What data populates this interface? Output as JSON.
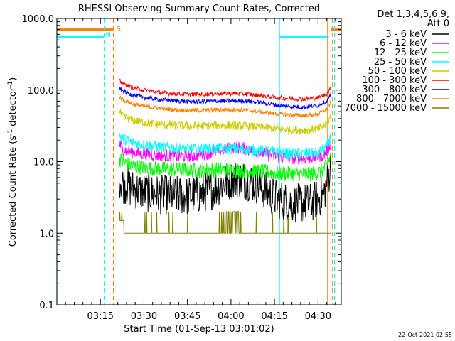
{
  "chart_data": {
    "type": "line",
    "title": "RHESSI Observing Summary Count Rates, Corrected",
    "xlabel": "Start Time (01-Sep-13 03:01:02)",
    "ylabel_main": "Corrected Count Rate (s",
    "ylabel_sup1": "-1",
    "ylabel_mid": " detector",
    "ylabel_sup2": "-1",
    "ylabel_end": ")",
    "y_scale": "log",
    "ylim": [
      0.1,
      1000
    ],
    "y_ticks": [
      {
        "value": 0.1,
        "label": "0.1"
      },
      {
        "value": 1,
        "label": "1.0"
      },
      {
        "value": 10,
        "label": "10.0"
      },
      {
        "value": 100,
        "label": "100.0"
      },
      {
        "value": 1000,
        "label": "1000.0"
      }
    ],
    "x_units": "minutes after 03:00",
    "xlim": [
      0,
      98
    ],
    "x_ticks": [
      {
        "value": 15,
        "label": "03:15"
      },
      {
        "value": 30,
        "label": "03:30"
      },
      {
        "value": 45,
        "label": "03:45"
      },
      {
        "value": 60,
        "label": "04:00"
      },
      {
        "value": 75,
        "label": "04:15"
      },
      {
        "value": 90,
        "label": "04:30"
      }
    ],
    "legend_header_1": "Det 1,3,4,5,6,9,",
    "legend_header_2": "Att 0",
    "legend_placement": "right",
    "series": [
      {
        "name": "3 - 6 keV",
        "color": "#000000",
        "start": 21.5,
        "end": 94.5,
        "x": [
          21.5,
          22.5,
          26,
          30,
          35,
          40,
          45,
          50,
          55,
          58,
          61,
          64,
          67,
          70,
          73,
          76,
          80,
          84,
          88,
          92,
          93.5,
          94.5
        ],
        "y": [
          6,
          5,
          4.2,
          3.8,
          3.5,
          3.4,
          3.3,
          3.6,
          4.3,
          5.2,
          5.7,
          5.7,
          5.2,
          4.5,
          3.6,
          3.0,
          2.7,
          2.6,
          2.7,
          3.5,
          6,
          9
        ]
      },
      {
        "name": "6 - 12 keV",
        "color": "#ff00ff",
        "start": 21.5,
        "end": 94.5,
        "x": [
          21.5,
          22.5,
          26,
          30,
          35,
          40,
          45,
          50,
          55,
          58,
          61,
          64,
          67,
          70,
          73,
          76,
          80,
          84,
          88,
          92,
          93.5,
          94.5
        ],
        "y": [
          18,
          15,
          13.5,
          12.8,
          12.3,
          12,
          11.8,
          12.6,
          14,
          15,
          15.8,
          15.4,
          14.6,
          13.5,
          12.6,
          11.8,
          11.3,
          11.1,
          11.4,
          12.5,
          15,
          19
        ]
      },
      {
        "name": "12 - 25 keV",
        "color": "#00ff00",
        "start": 21.5,
        "end": 94.5,
        "x": [
          21.5,
          22.5,
          26,
          30,
          35,
          40,
          45,
          50,
          55,
          60,
          65,
          70,
          75,
          80,
          85,
          90,
          93,
          94.5
        ],
        "y": [
          11,
          10,
          8.7,
          8.3,
          8.0,
          7.8,
          7.7,
          7.6,
          7.7,
          7.7,
          7.5,
          7.3,
          7.0,
          6.8,
          6.7,
          6.9,
          8.5,
          13
        ]
      },
      {
        "name": "25 - 50 keV",
        "color": "#00ffff",
        "start": 21.5,
        "end": 94.5,
        "x": [
          21.5,
          22.5,
          26,
          30,
          35,
          40,
          45,
          50,
          55,
          60,
          65,
          70,
          75,
          80,
          85,
          90,
          93,
          94.5
        ],
        "y": [
          24,
          21,
          18.5,
          17.2,
          16.3,
          15.6,
          15.2,
          15,
          15.2,
          15.1,
          14.8,
          14.3,
          13.6,
          13,
          12.8,
          13.2,
          16,
          24
        ]
      },
      {
        "name": "50 - 100 keV",
        "color": "#cccc00",
        "start": 21.5,
        "end": 94.5,
        "x": [
          21.5,
          22.5,
          26,
          30,
          35,
          40,
          45,
          50,
          55,
          60,
          65,
          70,
          75,
          80,
          85,
          90,
          93,
          94.5
        ],
        "y": [
          50,
          44,
          38,
          35,
          33,
          32,
          31.5,
          31.5,
          32,
          32,
          31.5,
          30.5,
          29,
          28,
          27.5,
          28.5,
          33,
          44
        ]
      },
      {
        "name": "100 - 300 keV",
        "color": "#ff0000",
        "start": 21.5,
        "end": 94.5,
        "x": [
          21.5,
          22.5,
          26,
          30,
          35,
          40,
          45,
          50,
          55,
          60,
          65,
          70,
          75,
          80,
          85,
          90,
          93,
          94.5
        ],
        "y": [
          135,
          125,
          108,
          100,
          93,
          89,
          87,
          87,
          89,
          90,
          88,
          84,
          79,
          76,
          75,
          78,
          88,
          108
        ]
      },
      {
        "name": "300 - 800 keV",
        "color": "#0000ff",
        "start": 21.5,
        "end": 94.5,
        "x": [
          21.5,
          22.5,
          26,
          30,
          35,
          40,
          45,
          50,
          55,
          60,
          65,
          70,
          75,
          80,
          85,
          90,
          93,
          94.5
        ],
        "y": [
          108,
          98,
          86,
          79,
          74,
          71,
          69,
          69,
          70,
          71,
          70,
          67,
          62,
          59,
          58,
          61,
          70,
          88
        ]
      },
      {
        "name": "800 - 7000 keV",
        "color": "#ff8000",
        "start": 21.5,
        "end": 94.5,
        "x": [
          21.5,
          22.5,
          26,
          30,
          35,
          40,
          45,
          50,
          55,
          60,
          65,
          70,
          75,
          80,
          85,
          90,
          93,
          94.5
        ],
        "y": [
          82,
          74,
          64,
          59,
          56,
          53.5,
          52,
          52,
          53,
          53.5,
          52.5,
          50,
          47,
          45,
          44,
          46,
          54,
          68
        ]
      },
      {
        "name": "7000 - 15000 keV",
        "color": "#808000",
        "start": 21.5,
        "end": 94.5,
        "x": [
          21.5,
          22.5,
          26,
          30,
          35,
          40,
          45,
          50,
          55,
          60,
          65,
          70,
          75,
          80,
          85,
          90,
          93,
          94.5
        ],
        "y": [
          2,
          1.5,
          1,
          1,
          1,
          1,
          1,
          1,
          1,
          1,
          1,
          1,
          1,
          1,
          1,
          1,
          1,
          1
        ]
      }
    ],
    "annotations": [
      {
        "label": "S",
        "color": "#ff8000"
      },
      {
        "label": "N",
        "color": "#00ffff"
      }
    ],
    "state_bars": {
      "saa": {
        "color": "#ff8000",
        "y": 700,
        "segments": [
          [
            0,
            19.5
          ],
          [
            94.5,
            98
          ]
        ]
      },
      "night": {
        "color": "#00ffff",
        "y": 560,
        "segments": [
          [
            0,
            16.3
          ],
          [
            76.7,
            93.7
          ]
        ]
      }
    },
    "state_lines": {
      "night": [
        {
          "x": 0,
          "dash": false
        },
        {
          "x": 16.3,
          "dash": true
        },
        {
          "x": 76.7,
          "dash": false
        },
        {
          "x": 95.7,
          "dash": true
        }
      ],
      "saa": [
        {
          "x": 19.5,
          "dash": true
        },
        {
          "x": 93.3,
          "dash": false
        },
        {
          "x": 95.0,
          "dash": true
        }
      ]
    },
    "timestamp": "22-Oct-2021 02:55"
  }
}
